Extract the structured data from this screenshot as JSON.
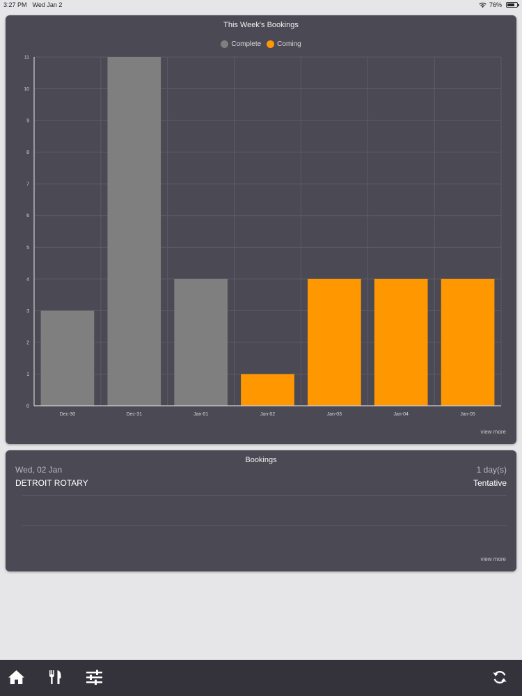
{
  "status_bar": {
    "time": "3:27 PM",
    "date": "Wed Jan 2",
    "battery": "76%",
    "battery_level": 0.76
  },
  "chart_card": {
    "view_more": "view more",
    "chart_data": {
      "type": "bar",
      "title": "This Week's Bookings",
      "categories": [
        "Dec-30",
        "Dec-31",
        "Jan-01",
        "Jan-02",
        "Jan-03",
        "Jan-04",
        "Jan-05"
      ],
      "values": [
        3,
        11,
        4,
        1,
        4,
        4,
        4
      ],
      "status": [
        "Complete",
        "Complete",
        "Complete",
        "Coming",
        "Coming",
        "Coming",
        "Coming"
      ],
      "legend": [
        {
          "label": "Complete",
          "color": "#7f7f7f"
        },
        {
          "label": "Coming",
          "color": "#ff9800"
        }
      ],
      "ylim": [
        0,
        11
      ],
      "yticks": [
        0,
        1,
        2,
        3,
        4,
        5,
        6,
        7,
        8,
        9,
        10,
        11
      ],
      "xlabel": "",
      "ylabel": "",
      "grid": true,
      "legend_position": "top-center"
    }
  },
  "bookings_card": {
    "title": "Bookings",
    "items": [
      {
        "date": "Wed, 02 Jan",
        "duration": "1 day(s)",
        "name": "DETROIT ROTARY",
        "status": "Tentative"
      }
    ],
    "view_more": "view more"
  },
  "tabbar": {
    "icons": [
      "home-icon",
      "restaurant-icon",
      "settings-sliders-icon",
      "refresh-icon"
    ]
  },
  "colors": {
    "card_bg": "#4a4954",
    "page_bg": "#e6e5e8",
    "tabbar_bg": "#34333c",
    "complete": "#7f7f7f",
    "coming": "#ff9800"
  }
}
